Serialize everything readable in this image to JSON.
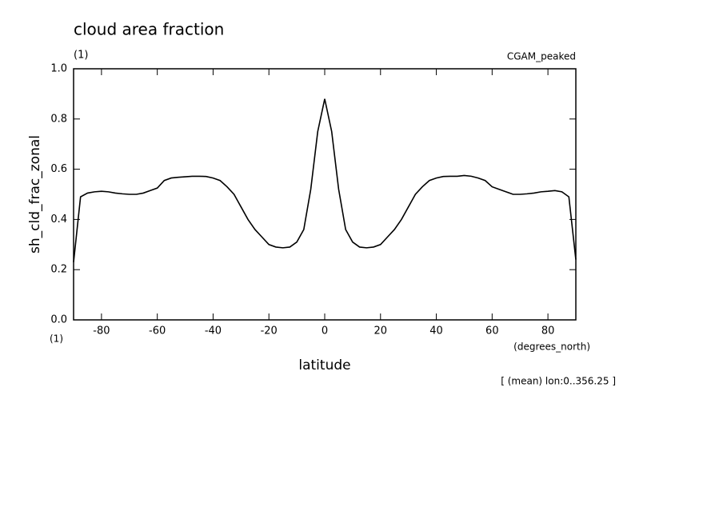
{
  "chart_data": {
    "type": "line",
    "title": "cloud area fraction",
    "units_label": "(1)",
    "dataset_label": "CGAM_peaked",
    "y_label": "sh_cld_frac_zonal",
    "x_label": "latitude",
    "y_units_label": "(1)",
    "x_units_label": "(degrees_north)",
    "footnote": "[ (mean) lon:0..356.25 ]",
    "color": "#000000",
    "x": [
      -90,
      -87.5,
      -85,
      -82.5,
      -80,
      -77.5,
      -75,
      -72.5,
      -70,
      -67.5,
      -65,
      -62.5,
      -60,
      -57.5,
      -55,
      -52.5,
      -50,
      -47.5,
      -45,
      -42.5,
      -40,
      -37.5,
      -35,
      -32.5,
      -30,
      -27.5,
      -25,
      -22.5,
      -20,
      -17.5,
      -15,
      -12.5,
      -10,
      -7.5,
      -5,
      -2.5,
      0,
      2.5,
      5,
      7.5,
      10,
      12.5,
      15,
      17.5,
      20,
      22.5,
      25,
      27.5,
      30,
      32.5,
      35,
      37.5,
      40,
      42.5,
      45,
      47.5,
      50,
      52.5,
      55,
      57.5,
      60,
      62.5,
      65,
      67.5,
      70,
      72.5,
      75,
      77.5,
      80,
      82.5,
      85,
      87.5,
      90
    ],
    "values": [
      0.23,
      0.49,
      0.505,
      0.51,
      0.512,
      0.51,
      0.505,
      0.502,
      0.5,
      0.5,
      0.505,
      0.515,
      0.525,
      0.555,
      0.565,
      0.568,
      0.57,
      0.572,
      0.572,
      0.571,
      0.565,
      0.555,
      0.53,
      0.5,
      0.45,
      0.4,
      0.36,
      0.33,
      0.3,
      0.29,
      0.287,
      0.29,
      0.31,
      0.36,
      0.52,
      0.75,
      0.88,
      0.75,
      0.52,
      0.36,
      0.31,
      0.29,
      0.287,
      0.29,
      0.3,
      0.33,
      0.36,
      0.4,
      0.45,
      0.5,
      0.53,
      0.555,
      0.565,
      0.571,
      0.572,
      0.572,
      0.575,
      0.572,
      0.565,
      0.555,
      0.53,
      0.52,
      0.51,
      0.5,
      0.5,
      0.502,
      0.505,
      0.51,
      0.512,
      0.515,
      0.51,
      0.49,
      0.24
    ],
    "xlim": [
      -90,
      90
    ],
    "ylim": [
      0,
      1
    ],
    "xticks": [
      -80,
      -60,
      -40,
      -20,
      0,
      20,
      40,
      60,
      80
    ],
    "yticks": [
      {
        "value": 0,
        "label": "0.0"
      },
      0.2,
      0.4,
      0.6,
      0.8,
      {
        "value": 1,
        "label": "1.0"
      }
    ]
  }
}
